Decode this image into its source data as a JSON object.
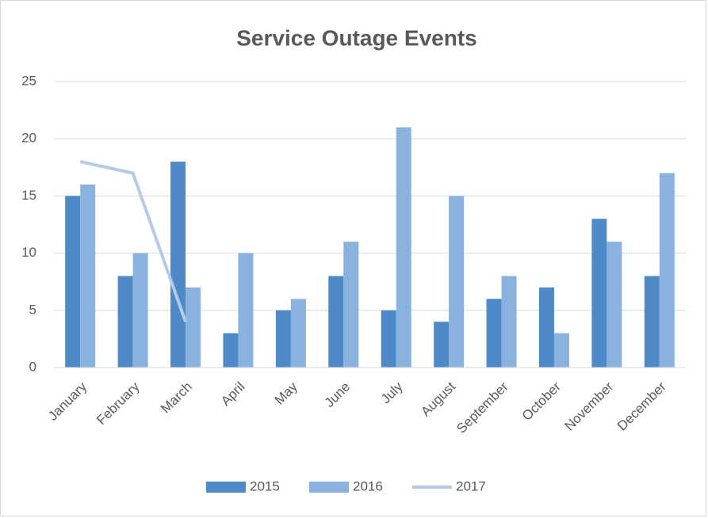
{
  "chart_data": {
    "type": "bar",
    "title": "Service Outage Events",
    "categories": [
      "January",
      "February",
      "March",
      "April",
      "May",
      "June",
      "July",
      "August",
      "September",
      "October",
      "November",
      "December"
    ],
    "series": [
      {
        "name": "2015",
        "type": "bar",
        "color": "#4e8ac8",
        "values": [
          15,
          8,
          18,
          3,
          5,
          8,
          5,
          4,
          6,
          7,
          13,
          8
        ]
      },
      {
        "name": "2016",
        "type": "bar",
        "color": "#8ab2de",
        "values": [
          16,
          10,
          7,
          10,
          6,
          11,
          21,
          15,
          8,
          3,
          11,
          17
        ]
      },
      {
        "name": "2017",
        "type": "line",
        "color": "#b4cbe8",
        "values": [
          18,
          17,
          4,
          null,
          null,
          null,
          null,
          null,
          null,
          null,
          null,
          null
        ]
      }
    ],
    "ylim": [
      0,
      25
    ],
    "yticks": [
      0,
      5,
      10,
      15,
      20,
      25
    ],
    "grid": true,
    "legend": "bottom"
  }
}
